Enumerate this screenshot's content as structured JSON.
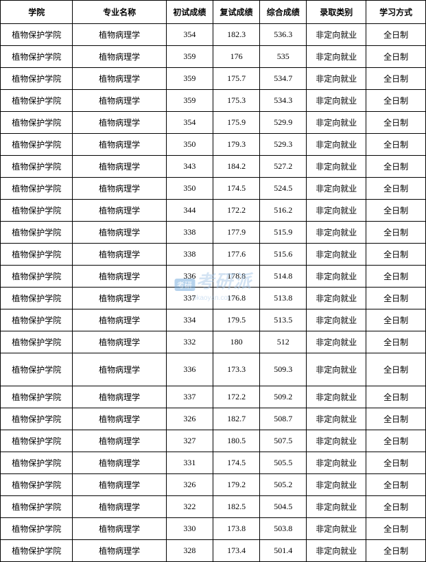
{
  "table": {
    "columns": [
      "学院",
      "专业名称",
      "初试成绩",
      "复试成绩",
      "综合成绩",
      "录取类别",
      "学习方式"
    ],
    "column_classes": [
      "col-college",
      "col-major",
      "col-score1",
      "col-score2",
      "col-score3",
      "col-category",
      "col-mode"
    ],
    "border_color": "#000000",
    "background_color": "#ffffff",
    "header_fontsize": 12,
    "cell_fontsize": 12,
    "font_family": "SimSun",
    "tall_row_index": 15,
    "rows": [
      [
        "植物保护学院",
        "植物病理学",
        "354",
        "182.3",
        "536.3",
        "非定向就业",
        "全日制"
      ],
      [
        "植物保护学院",
        "植物病理学",
        "359",
        "176",
        "535",
        "非定向就业",
        "全日制"
      ],
      [
        "植物保护学院",
        "植物病理学",
        "359",
        "175.7",
        "534.7",
        "非定向就业",
        "全日制"
      ],
      [
        "植物保护学院",
        "植物病理学",
        "359",
        "175.3",
        "534.3",
        "非定向就业",
        "全日制"
      ],
      [
        "植物保护学院",
        "植物病理学",
        "354",
        "175.9",
        "529.9",
        "非定向就业",
        "全日制"
      ],
      [
        "植物保护学院",
        "植物病理学",
        "350",
        "179.3",
        "529.3",
        "非定向就业",
        "全日制"
      ],
      [
        "植物保护学院",
        "植物病理学",
        "343",
        "184.2",
        "527.2",
        "非定向就业",
        "全日制"
      ],
      [
        "植物保护学院",
        "植物病理学",
        "350",
        "174.5",
        "524.5",
        "非定向就业",
        "全日制"
      ],
      [
        "植物保护学院",
        "植物病理学",
        "344",
        "172.2",
        "516.2",
        "非定向就业",
        "全日制"
      ],
      [
        "植物保护学院",
        "植物病理学",
        "338",
        "177.9",
        "515.9",
        "非定向就业",
        "全日制"
      ],
      [
        "植物保护学院",
        "植物病理学",
        "338",
        "177.6",
        "515.6",
        "非定向就业",
        "全日制"
      ],
      [
        "植物保护学院",
        "植物病理学",
        "336",
        "178.8",
        "514.8",
        "非定向就业",
        "全日制"
      ],
      [
        "植物保护学院",
        "植物病理学",
        "337",
        "176.8",
        "513.8",
        "非定向就业",
        "全日制"
      ],
      [
        "植物保护学院",
        "植物病理学",
        "334",
        "179.5",
        "513.5",
        "非定向就业",
        "全日制"
      ],
      [
        "植物保护学院",
        "植物病理学",
        "332",
        "180",
        "512",
        "非定向就业",
        "全日制"
      ],
      [
        "植物保护学院",
        "植物病理学",
        "336",
        "173.3",
        "509.3",
        "非定向就业",
        "全日制"
      ],
      [
        "植物保护学院",
        "植物病理学",
        "337",
        "172.2",
        "509.2",
        "非定向就业",
        "全日制"
      ],
      [
        "植物保护学院",
        "植物病理学",
        "326",
        "182.7",
        "508.7",
        "非定向就业",
        "全日制"
      ],
      [
        "植物保护学院",
        "植物病理学",
        "327",
        "180.5",
        "507.5",
        "非定向就业",
        "全日制"
      ],
      [
        "植物保护学院",
        "植物病理学",
        "331",
        "174.5",
        "505.5",
        "非定向就业",
        "全日制"
      ],
      [
        "植物保护学院",
        "植物病理学",
        "326",
        "179.2",
        "505.2",
        "非定向就业",
        "全日制"
      ],
      [
        "植物保护学院",
        "植物病理学",
        "322",
        "182.5",
        "504.5",
        "非定向就业",
        "全日制"
      ],
      [
        "植物保护学院",
        "植物病理学",
        "330",
        "173.8",
        "503.8",
        "非定向就业",
        "全日制"
      ],
      [
        "植物保护学院",
        "植物病理学",
        "328",
        "173.4",
        "501.4",
        "非定向就业",
        "全日制"
      ]
    ]
  },
  "watermark": {
    "badge_text": "考研",
    "main_text": "考研派",
    "sub_text": "okaoyan.com",
    "main_color": "#a8c8e8",
    "badge_bg": "#6fa8dc",
    "opacity": 0.5
  }
}
